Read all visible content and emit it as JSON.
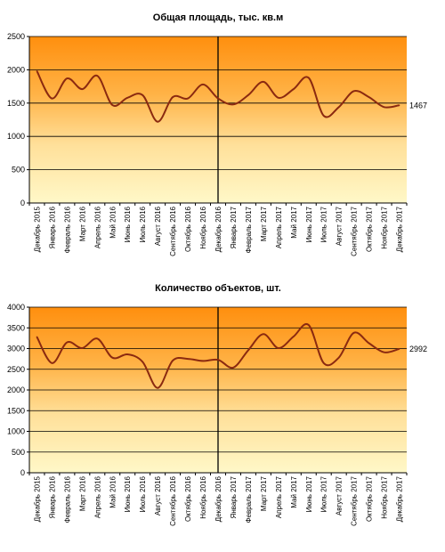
{
  "chart_data": [
    {
      "type": "line",
      "title": "Общая площадь, тыс. кв.м",
      "categories": [
        "Декабрь 2015",
        "Январь 2016",
        "Февраль 2016",
        "Март 2016",
        "Апрель 2016",
        "Май 2016",
        "Июнь 2016",
        "Июль 2016",
        "Август 2016",
        "Сентябрь 2016",
        "Октябрь 2016",
        "Ноябрь 2016",
        "Декабрь 2016",
        "Январь 2017",
        "Февраль 2017",
        "Март 2017",
        "Апрель 2017",
        "Май 2017",
        "Июнь 2017",
        "Июль 2017",
        "Август 2017",
        "Сентябрь 2017",
        "Октябрь 2017",
        "Ноябрь 2017",
        "Декабрь 2017"
      ],
      "series": [
        {
          "values": [
            1980,
            1570,
            1870,
            1710,
            1910,
            1470,
            1580,
            1620,
            1220,
            1590,
            1570,
            1780,
            1570,
            1480,
            1620,
            1820,
            1580,
            1710,
            1880,
            1310,
            1440,
            1680,
            1590,
            1440,
            1467
          ]
        }
      ],
      "ylim": [
        0,
        2500
      ],
      "yticks": [
        0,
        500,
        1000,
        1500,
        2000,
        2500
      ],
      "last_value_label": "1467",
      "grid": true,
      "color": "#8b2a10"
    },
    {
      "type": "line",
      "title": "Количество объектов, шт.",
      "categories": [
        "Декабрь 2015",
        "Январь 2016",
        "Февраль 2016",
        "Март 2016",
        "Апрель 2016",
        "Май 2016",
        "Июнь 2016",
        "Июль 2016",
        "Август 2016",
        "Сентябрь 2016",
        "Октябрь 2016",
        "Ноябрь 2016",
        "Декабрь 2016",
        "Январь 2017",
        "Февраль 2017",
        "Март 2017",
        "Апрель 2017",
        "Май 2017",
        "Июнь 2017",
        "Июль 2017",
        "Август 2017",
        "Сентябрь 2017",
        "Октябрь 2017",
        "Ноябрь 2017",
        "Декабрь 2017"
      ],
      "series": [
        {
          "values": [
            3280,
            2650,
            3150,
            3010,
            3240,
            2780,
            2860,
            2680,
            2050,
            2710,
            2750,
            2700,
            2730,
            2540,
            2960,
            3350,
            3010,
            3290,
            3570,
            2650,
            2780,
            3380,
            3130,
            2910,
            2992
          ]
        }
      ],
      "ylim": [
        0,
        4000
      ],
      "yticks": [
        0,
        500,
        1000,
        1500,
        2000,
        2500,
        3000,
        3500,
        4000
      ],
      "last_value_label": "2992",
      "grid": true,
      "color": "#8b2a10"
    }
  ]
}
